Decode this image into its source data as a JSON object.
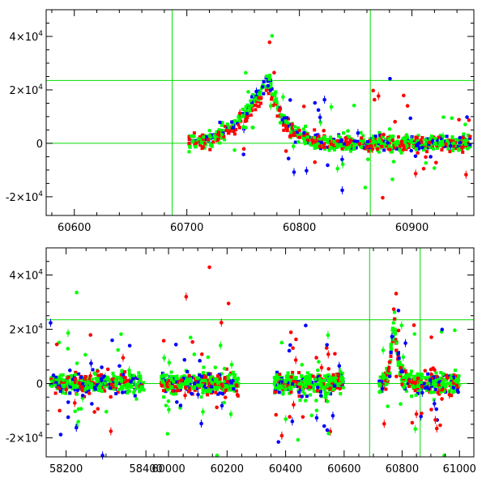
{
  "chart_data": [
    {
      "type": "scatter",
      "title": "",
      "xlabel": "",
      "ylabel": "",
      "xlim": [
        60575,
        60955
      ],
      "ylim": [
        -27000,
        50000
      ],
      "x_ticks": [
        60600,
        60700,
        60800,
        60900
      ],
      "x_tick_labels": [
        "60600",
        "60700",
        "60800",
        "60900"
      ],
      "y_ticks": [
        -20000,
        0,
        20000,
        40000
      ],
      "y_tick_labels": [
        {
          "mantissa": "-2×10",
          "exp": "4"
        },
        {
          "mantissa": "0",
          "exp": ""
        },
        {
          "mantissa": "2×10",
          "exp": "4"
        },
        {
          "mantissa": "4×10",
          "exp": "4"
        }
      ],
      "reference_lines": {
        "horizontal": [
          0,
          23500
        ],
        "vertical": [
          60687,
          60863
        ]
      },
      "series": [
        {
          "name": "red",
          "color": "#ff0000",
          "description": "band with rise and peak ~20000 near MJD 60775"
        },
        {
          "name": "green",
          "color": "#00ff00",
          "description": "band peaking ~25000 near MJD 60773"
        },
        {
          "name": "blue",
          "color": "#0000ff",
          "description": "band with sparse points and outliers"
        }
      ],
      "event": {
        "start": 60700,
        "peak_x": 60773,
        "peak_y": 25000,
        "rise_days": 38,
        "decay_days": 13
      }
    },
    {
      "type": "scatter",
      "title": "",
      "xlabel": "",
      "ylabel": "",
      "segments": [
        {
          "xlim": [
            58150,
            58420
          ],
          "x_ticks": [
            58200,
            58400
          ],
          "x_tick_labels": [
            "58200",
            "58400"
          ]
        },
        {
          "xlim": [
            59950,
            60700
          ],
          "x_ticks": [
            60000,
            60200,
            60400,
            60600
          ],
          "x_tick_labels": [
            "60000",
            "60200",
            "60400",
            "60600"
          ]
        },
        {
          "xlim": [
            60700,
            61050
          ],
          "x_ticks": [
            60800,
            61000
          ],
          "x_tick_labels": [
            "60800",
            "61000"
          ]
        }
      ],
      "ylim": [
        -27000,
        50000
      ],
      "y_ticks": [
        -20000,
        0,
        20000,
        40000
      ],
      "y_tick_labels": [
        {
          "mantissa": "-2×10",
          "exp": "4"
        },
        {
          "mantissa": "0",
          "exp": ""
        },
        {
          "mantissa": "2×10",
          "exp": "4"
        },
        {
          "mantissa": "4×10",
          "exp": "4"
        }
      ],
      "reference_lines": {
        "horizontal": [
          0,
          23500
        ],
        "vertical": [
          60687,
          60863
        ]
      },
      "series": [
        {
          "name": "red",
          "color": "#ff0000"
        },
        {
          "name": "green",
          "color": "#00ff00"
        },
        {
          "name": "blue",
          "color": "#0000ff"
        }
      ],
      "seasons": [
        {
          "start": 58160,
          "end": 58395
        },
        {
          "start": 59975,
          "end": 60240
        },
        {
          "start": 60360,
          "end": 60598
        },
        {
          "start": 60720,
          "end": 61000
        }
      ],
      "event": {
        "peak_x": 60773,
        "peak_y": 25000
      }
    }
  ]
}
